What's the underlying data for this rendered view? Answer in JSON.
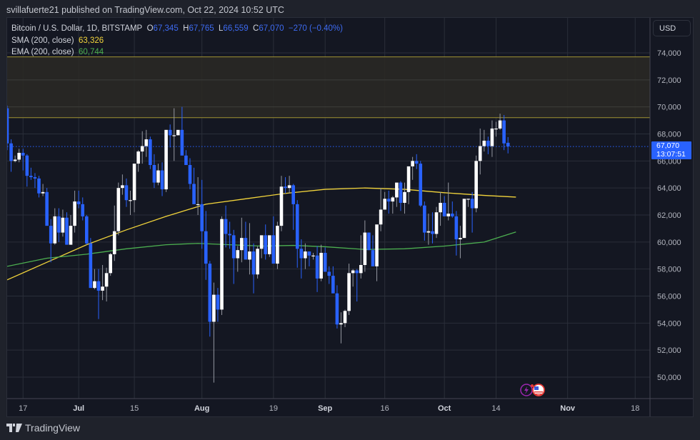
{
  "header": {
    "published": "svillafuerte21 published on TradingView.com, Oct 22, 2024 10:52 UTC"
  },
  "legend": {
    "symbol": "Bitcoin / U.S. Dollar, 1D, BITSTAMP",
    "o_label": "O",
    "o": "67,345",
    "h_label": "H",
    "h": "67,765",
    "l_label": "L",
    "l": "66,559",
    "c_label": "C",
    "c": "67,070",
    "change": "−270 (−0.40%)",
    "sma_label": "SMA (200, close)",
    "sma_value": "63,326",
    "ema_label": "EMA (200, close)",
    "ema_value": "60,744"
  },
  "price_axis": {
    "currency_button": "USD",
    "current_price": "67,070",
    "countdown": "13:07:51"
  },
  "footer": {
    "brand": "TradingView"
  },
  "colors": {
    "up": "#ffffff",
    "down": "#2962ff",
    "sma": "#f2d43b",
    "ema": "#4caf50",
    "zone_fill": "#2a2925",
    "zone_border": "#a09232",
    "background": "#141722"
  },
  "chart_data": {
    "type": "candlestick",
    "title": "Bitcoin / U.S. Dollar, 1D, BITSTAMP",
    "xlabel": "",
    "ylabel": "USD",
    "ylim": [
      48500,
      75500
    ],
    "y_ticks": [
      50000,
      52000,
      54000,
      56000,
      58000,
      60000,
      62000,
      64000,
      66000,
      68000,
      70000,
      72000,
      74000
    ],
    "x_ticks": [
      {
        "label": "17",
        "day": 4
      },
      {
        "label": "Jul",
        "day": 18,
        "bold": true
      },
      {
        "label": "15",
        "day": 32
      },
      {
        "label": "Aug",
        "day": 49,
        "bold": true
      },
      {
        "label": "19",
        "day": 67
      },
      {
        "label": "Sep",
        "day": 80,
        "bold": true
      },
      {
        "label": "16",
        "day": 95
      },
      {
        "label": "Oct",
        "day": 110,
        "bold": true
      },
      {
        "label": "14",
        "day": 123
      },
      {
        "label": "Nov",
        "day": 141,
        "bold": true
      },
      {
        "label": "18",
        "day": 158
      }
    ],
    "start_date": "2024-06-13",
    "annotations": {
      "resistance_zone": [
        69200,
        73700
      ],
      "current_price_line": 67070
    },
    "candles": [
      [
        69900,
        70100,
        66800,
        67300
      ],
      [
        67300,
        67600,
        65200,
        66000
      ],
      [
        66000,
        66400,
        65900,
        66100
      ],
      [
        66100,
        66900,
        65900,
        66600
      ],
      [
        66600,
        66900,
        65300,
        66400
      ],
      [
        66400,
        66500,
        64100,
        64900
      ],
      [
        64900,
        65500,
        64600,
        64800
      ],
      [
        64800,
        65100,
        64000,
        64700
      ],
      [
        64700,
        64900,
        63300,
        63600
      ],
      [
        63600,
        64300,
        63400,
        63700
      ],
      [
        63700,
        64000,
        61700,
        61200
      ],
      [
        61200,
        61700,
        58500,
        59900
      ],
      [
        59900,
        62500,
        59800,
        61900
      ],
      [
        61900,
        62500,
        60000,
        60700
      ],
      [
        60700,
        62400,
        60400,
        61800
      ],
      [
        61800,
        62200,
        59800,
        59800
      ],
      [
        59800,
        62000,
        59900,
        61200
      ],
      [
        61200,
        63800,
        60700,
        63000
      ],
      [
        63000,
        63800,
        62500,
        62800
      ],
      [
        62800,
        63300,
        61600,
        61900
      ],
      [
        61900,
        62000,
        59800,
        59900
      ],
      [
        59900,
        60300,
        56700,
        56600
      ],
      [
        56600,
        58000,
        56500,
        57100
      ],
      [
        57100,
        58000,
        54300,
        56400
      ],
      [
        56400,
        58300,
        55700,
        56700
      ],
      [
        56700,
        58100,
        55600,
        57700
      ],
      [
        57700,
        59200,
        57500,
        59100
      ],
      [
        59100,
        62700,
        58600,
        60800
      ],
      [
        60800,
        64400,
        60500,
        64000
      ],
      [
        64000,
        65000,
        63500,
        64200
      ],
      [
        64200,
        64700,
        62600,
        63100
      ],
      [
        63100,
        63800,
        62000,
        63100
      ],
      [
        63100,
        65300,
        62200,
        65800
      ],
      [
        65800,
        66800,
        65200,
        66700
      ],
      [
        66700,
        68200,
        65800,
        67100
      ],
      [
        67100,
        68300,
        66300,
        67600
      ],
      [
        67600,
        67800,
        65400,
        65700
      ],
      [
        65700,
        66500,
        64000,
        64400
      ],
      [
        64400,
        65800,
        64200,
        65300
      ],
      [
        65300,
        65900,
        63400,
        63900
      ],
      [
        63900,
        68000,
        63700,
        68300
      ],
      [
        68300,
        68700,
        67000,
        67900
      ],
      [
        67900,
        69900,
        66000,
        67900
      ],
      [
        67900,
        68000,
        68000,
        68300
      ],
      [
        68300,
        70000,
        66600,
        66400
      ],
      [
        66400,
        66800,
        65700,
        65700
      ],
      [
        65700,
        66200,
        63900,
        64300
      ],
      [
        64300,
        65500,
        63400,
        62800
      ],
      [
        62800,
        64800,
        62000,
        62800
      ],
      [
        62800,
        64600,
        59500,
        60800
      ],
      [
        60800,
        62300,
        57200,
        58400
      ],
      [
        58400,
        58600,
        53000,
        54100
      ],
      [
        54100,
        57000,
        49600,
        56100
      ],
      [
        56100,
        56600,
        54100,
        55000
      ],
      [
        55000,
        61900,
        54600,
        61700
      ],
      [
        61700,
        62700,
        59600,
        60600
      ],
      [
        60600,
        61500,
        59500,
        60500
      ],
      [
        60500,
        60900,
        56900,
        58800
      ],
      [
        58800,
        59700,
        57800,
        59400
      ],
      [
        59400,
        61800,
        58500,
        60300
      ],
      [
        60300,
        61500,
        58800,
        58700
      ],
      [
        58700,
        61400,
        57600,
        59300
      ],
      [
        59300,
        59900,
        56200,
        57600
      ],
      [
        57600,
        59700,
        57300,
        59500
      ],
      [
        59500,
        60300,
        58800,
        60500
      ],
      [
        60500,
        61300,
        58700,
        59100
      ],
      [
        59100,
        60300,
        58900,
        60500
      ],
      [
        60500,
        61900,
        60100,
        58400
      ],
      [
        58400,
        61500,
        58000,
        61200
      ],
      [
        61200,
        64900,
        60800,
        64100
      ],
      [
        64100,
        64800,
        63600,
        64000
      ],
      [
        64000,
        64900,
        63600,
        64200
      ],
      [
        64200,
        64300,
        60900,
        62800
      ],
      [
        62800,
        63100,
        58100,
        59500
      ],
      [
        59500,
        60200,
        57300,
        58800
      ],
      [
        58800,
        59900,
        58000,
        59300
      ],
      [
        59300,
        59300,
        58200,
        59000
      ],
      [
        59000,
        59200,
        58700,
        59000
      ],
      [
        59000,
        59700,
        56300,
        57300
      ],
      [
        57300,
        59800,
        57100,
        59200
      ],
      [
        59200,
        59600,
        57800,
        57800
      ],
      [
        57800,
        58200,
        56900,
        57500
      ],
      [
        57500,
        58200,
        56700,
        56200
      ],
      [
        56200,
        56800,
        53600,
        53900
      ],
      [
        53900,
        54800,
        52500,
        54000
      ],
      [
        54000,
        55000,
        53700,
        54900
      ],
      [
        54900,
        58400,
        54600,
        57700
      ],
      [
        57700,
        58000,
        56700,
        57900
      ],
      [
        57900,
        58000,
        55600,
        57700
      ],
      [
        57700,
        60500,
        57300,
        58300
      ],
      [
        58300,
        61600,
        57800,
        60700
      ],
      [
        60700,
        60700,
        59400,
        59400
      ],
      [
        59400,
        60500,
        58600,
        58200
      ],
      [
        58200,
        61000,
        57100,
        61300
      ],
      [
        61300,
        64000,
        60800,
        62400
      ],
      [
        62400,
        63700,
        62500,
        63200
      ],
      [
        63200,
        63800,
        62100,
        63000
      ],
      [
        63000,
        63400,
        62100,
        63300
      ],
      [
        63300,
        64100,
        62600,
        64400
      ],
      [
        64400,
        64500,
        62300,
        62900
      ],
      [
        62900,
        64400,
        62100,
        63700
      ],
      [
        63700,
        65400,
        62800,
        65600
      ],
      [
        65600,
        66300,
        64600,
        66000
      ],
      [
        66000,
        66500,
        65400,
        65800
      ],
      [
        65800,
        66000,
        62600,
        62700
      ],
      [
        62700,
        63000,
        60100,
        60700
      ],
      [
        60700,
        62100,
        59800,
        60800
      ],
      [
        60800,
        62200,
        59900,
        60600
      ],
      [
        60600,
        62600,
        60300,
        62200
      ],
      [
        62200,
        63700,
        61200,
        62900
      ],
      [
        62900,
        63400,
        62100,
        61900
      ],
      [
        61900,
        64400,
        61600,
        62100
      ],
      [
        62100,
        63000,
        61800,
        61900
      ],
      [
        61900,
        62300,
        59000,
        60200
      ],
      [
        60200,
        61200,
        58800,
        60300
      ],
      [
        60300,
        61000,
        60300,
        63200
      ],
      [
        63200,
        63200,
        62600,
        63200
      ],
      [
        63200,
        63700,
        60700,
        62500
      ],
      [
        62500,
        66400,
        62200,
        66000
      ],
      [
        66000,
        68400,
        65000,
        67100
      ],
      [
        67100,
        68300,
        66700,
        67500
      ],
      [
        67500,
        67800,
        66500,
        67100
      ],
      [
        67100,
        69000,
        66300,
        68400
      ],
      [
        68400,
        68900,
        67800,
        68400
      ],
      [
        68400,
        69500,
        68300,
        69000
      ],
      [
        69000,
        69400,
        66800,
        67300
      ],
      [
        67345,
        67765,
        66559,
        67070
      ]
    ],
    "series": [
      {
        "name": "SMA (200, close)",
        "color": "#f2d43b",
        "points": [
          [
            0,
            57200
          ],
          [
            10,
            58500
          ],
          [
            20,
            59800
          ],
          [
            30,
            60900
          ],
          [
            40,
            61900
          ],
          [
            50,
            62800
          ],
          [
            60,
            63200
          ],
          [
            70,
            63600
          ],
          [
            80,
            63900
          ],
          [
            90,
            64000
          ],
          [
            100,
            63900
          ],
          [
            110,
            63650
          ],
          [
            120,
            63450
          ],
          [
            128,
            63326
          ]
        ]
      },
      {
        "name": "EMA (200, close)",
        "color": "#4caf50",
        "points": [
          [
            0,
            58200
          ],
          [
            10,
            58800
          ],
          [
            20,
            59100
          ],
          [
            30,
            59500
          ],
          [
            40,
            59800
          ],
          [
            48,
            59900
          ],
          [
            56,
            59800
          ],
          [
            64,
            59700
          ],
          [
            72,
            59750
          ],
          [
            80,
            59650
          ],
          [
            90,
            59450
          ],
          [
            100,
            59500
          ],
          [
            110,
            59700
          ],
          [
            120,
            60000
          ],
          [
            128,
            60744
          ]
        ]
      }
    ]
  }
}
